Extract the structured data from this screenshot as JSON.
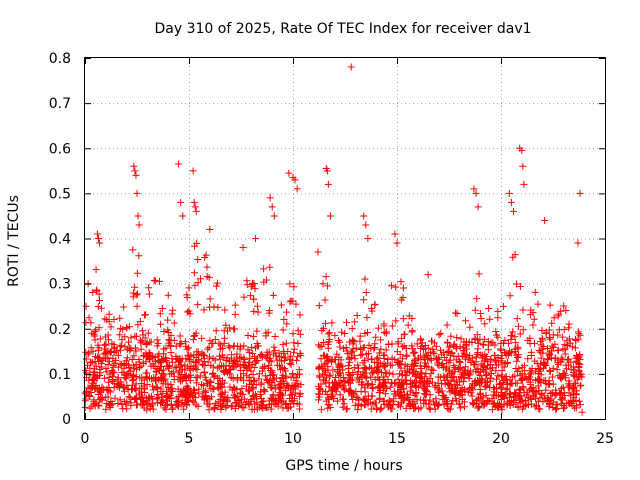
{
  "chart_data": {
    "type": "scatter",
    "title": "Day 310 of 2025, Rate Of TEC Index for receiver dav1",
    "xlabel": "GPS time / hours",
    "ylabel": "ROTI / TECUs",
    "xlim": [
      0,
      25
    ],
    "ylim": [
      0,
      0.8
    ],
    "x_ticks": [
      "0",
      "5",
      "10",
      "15",
      "20",
      "25"
    ],
    "y_ticks": [
      "0",
      "0.1",
      "0.2",
      "0.3",
      "0.4",
      "0.5",
      "0.6",
      "0.7",
      "0.8"
    ],
    "grid": true,
    "legend": "none",
    "marker": "plus",
    "color": "#ff0000",
    "time_span_hours": [
      0,
      24
    ],
    "data_gaps_hours": [
      [
        10.4,
        11.2
      ],
      [
        23.9,
        24.0
      ]
    ],
    "dense_baseline_roti": [
      0.05,
      0.2
    ],
    "points": [
      [
        0.05,
        0.25
      ],
      [
        0.15,
        0.3
      ],
      [
        0.6,
        0.41
      ],
      [
        0.65,
        0.4
      ],
      [
        0.7,
        0.39
      ],
      [
        2.35,
        0.56
      ],
      [
        2.4,
        0.55
      ],
      [
        2.45,
        0.54
      ],
      [
        2.5,
        0.5
      ],
      [
        2.55,
        0.45
      ],
      [
        2.6,
        0.43
      ],
      [
        4.5,
        0.565
      ],
      [
        4.6,
        0.48
      ],
      [
        4.7,
        0.45
      ],
      [
        5.2,
        0.55
      ],
      [
        5.25,
        0.48
      ],
      [
        5.3,
        0.47
      ],
      [
        5.35,
        0.46
      ],
      [
        6.0,
        0.42
      ],
      [
        7.6,
        0.38
      ],
      [
        8.2,
        0.4
      ],
      [
        8.9,
        0.49
      ],
      [
        9.0,
        0.47
      ],
      [
        9.1,
        0.45
      ],
      [
        9.8,
        0.545
      ],
      [
        10.0,
        0.535
      ],
      [
        10.1,
        0.53
      ],
      [
        10.2,
        0.51
      ],
      [
        11.2,
        0.37
      ],
      [
        11.6,
        0.555
      ],
      [
        11.65,
        0.55
      ],
      [
        11.7,
        0.52
      ],
      [
        11.8,
        0.45
      ],
      [
        12.8,
        0.78
      ],
      [
        13.4,
        0.45
      ],
      [
        13.5,
        0.43
      ],
      [
        13.6,
        0.4
      ],
      [
        14.9,
        0.41
      ],
      [
        15.0,
        0.39
      ],
      [
        16.5,
        0.32
      ],
      [
        18.7,
        0.51
      ],
      [
        18.8,
        0.5
      ],
      [
        18.9,
        0.47
      ],
      [
        20.4,
        0.5
      ],
      [
        20.5,
        0.48
      ],
      [
        20.6,
        0.46
      ],
      [
        20.9,
        0.6
      ],
      [
        21.0,
        0.595
      ],
      [
        21.05,
        0.56
      ],
      [
        21.1,
        0.52
      ],
      [
        22.1,
        0.44
      ],
      [
        23.8,
        0.5
      ],
      [
        23.7,
        0.39
      ],
      [
        23.9,
        0.015
      ]
    ]
  }
}
